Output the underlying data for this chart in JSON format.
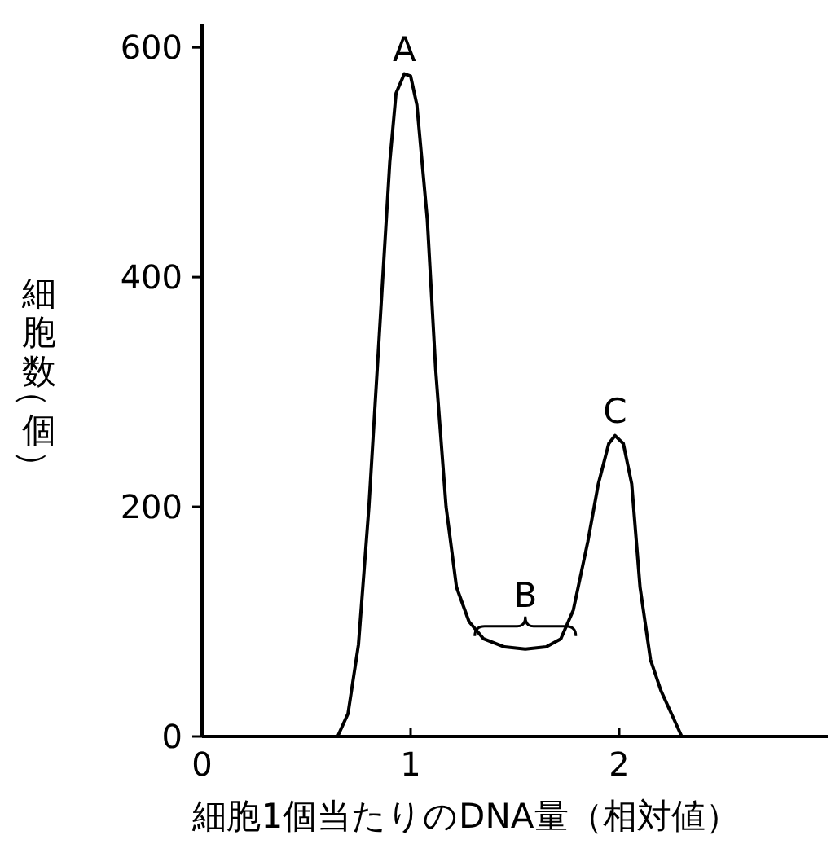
{
  "chart_data": {
    "type": "line",
    "xlabel": "細胞1個当たりのDNA量（相対値）",
    "ylabel": "細胞数（個）",
    "x": [
      0.65,
      0.7,
      0.75,
      0.8,
      0.85,
      0.9,
      0.93,
      0.97,
      1.0,
      1.03,
      1.08,
      1.12,
      1.17,
      1.22,
      1.28,
      1.35,
      1.45,
      1.55,
      1.65,
      1.72,
      1.78,
      1.85,
      1.9,
      1.95,
      1.98,
      2.02,
      2.06,
      2.1,
      2.15,
      2.2,
      2.3
    ],
    "series": [
      {
        "color": "#000000",
        "values": [
          0,
          20,
          80,
          200,
          350,
          500,
          560,
          577,
          575,
          550,
          450,
          320,
          200,
          130,
          100,
          85,
          78,
          76,
          78,
          85,
          110,
          170,
          220,
          255,
          262,
          255,
          220,
          130,
          67,
          40,
          0
        ]
      }
    ],
    "xlim": [
      0,
      3
    ],
    "ylim": [
      0,
      620
    ],
    "xticks": [
      0,
      1,
      2
    ],
    "yticks": [
      0,
      200,
      400,
      600
    ],
    "annotations": [
      {
        "text": "A",
        "x": 0.97,
        "y": 577
      },
      {
        "text": "B",
        "x": 1.55,
        "y": 76
      },
      {
        "text": "C",
        "x": 1.98,
        "y": 262
      }
    ]
  }
}
